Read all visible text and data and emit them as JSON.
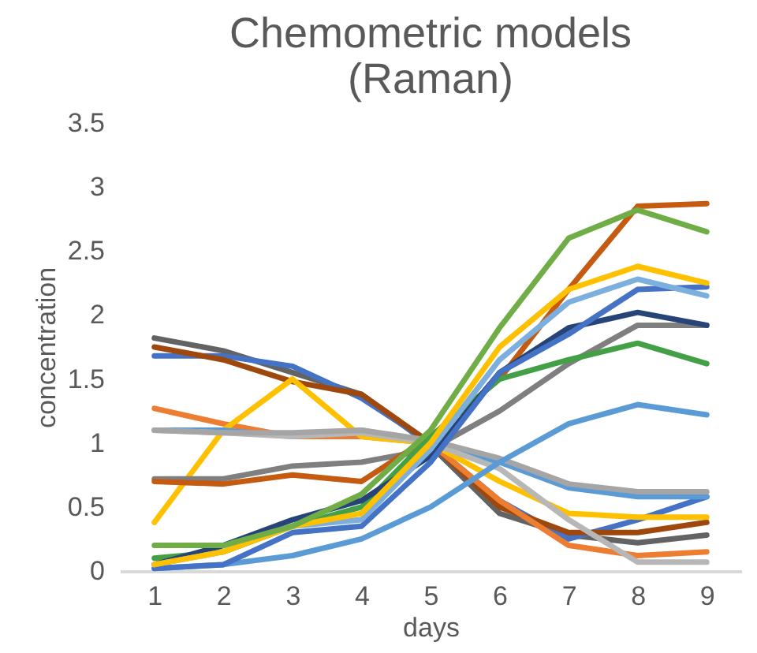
{
  "chart_data": {
    "type": "line",
    "title": "Chemometric models\n(Raman)",
    "xlabel": "days",
    "ylabel": "concentration",
    "x": [
      1,
      2,
      3,
      4,
      5,
      6,
      7,
      8,
      9
    ],
    "xlim": [
      0.5,
      9.5
    ],
    "xticks": [
      1,
      2,
      3,
      4,
      5,
      6,
      7,
      8,
      9
    ],
    "ylim": [
      0,
      3.5
    ],
    "yticks": [
      0,
      0.5,
      1,
      1.5,
      2,
      2.5,
      3,
      3.5
    ],
    "grid": false,
    "legend": false,
    "marker": "none",
    "line_style": "solid",
    "series": [
      {
        "color": "#636363",
        "values": [
          1.82,
          1.72,
          1.55,
          1.38,
          0.98,
          0.45,
          0.28,
          0.22,
          0.28
        ]
      },
      {
        "color": "#4472c4",
        "values": [
          1.68,
          1.68,
          1.6,
          1.35,
          1.0,
          0.55,
          0.25,
          0.4,
          0.58
        ]
      },
      {
        "color": "#9e480e",
        "values": [
          1.75,
          1.65,
          1.48,
          1.38,
          1.0,
          0.5,
          0.3,
          0.3,
          0.38
        ]
      },
      {
        "color": "#ed7d31",
        "values": [
          1.27,
          1.15,
          1.05,
          1.05,
          1.0,
          0.55,
          0.2,
          0.12,
          0.15
        ]
      },
      {
        "color": "#ffc000",
        "values": [
          0.38,
          1.1,
          1.5,
          1.05,
          1.0,
          0.7,
          0.45,
          0.42,
          0.42
        ]
      },
      {
        "color": "#5b9bd5",
        "values": [
          1.1,
          1.1,
          1.05,
          1.1,
          1.0,
          0.85,
          0.65,
          0.58,
          0.58
        ]
      },
      {
        "color": "#b7b7b7",
        "values": [
          1.1,
          1.08,
          1.05,
          1.08,
          1.0,
          0.8,
          0.4,
          0.07,
          0.07
        ]
      },
      {
        "color": "#a5a5a5",
        "values": [
          1.1,
          1.08,
          1.08,
          1.1,
          1.02,
          0.88,
          0.68,
          0.62,
          0.62
        ]
      },
      {
        "color": "#7f7f7f",
        "values": [
          0.72,
          0.72,
          0.82,
          0.85,
          0.95,
          1.25,
          1.62,
          1.92,
          1.92
        ]
      },
      {
        "color": "#c55a11",
        "values": [
          0.7,
          0.68,
          0.75,
          0.7,
          1.05,
          1.5,
          2.2,
          2.85,
          2.87
        ]
      },
      {
        "color": "#5b9bd5",
        "values": [
          0.02,
          0.05,
          0.12,
          0.25,
          0.5,
          0.85,
          1.15,
          1.3,
          1.22
        ]
      },
      {
        "color": "#43a047",
        "values": [
          0.1,
          0.15,
          0.35,
          0.5,
          1.05,
          1.5,
          1.65,
          1.78,
          1.62
        ]
      },
      {
        "color": "#264478",
        "values": [
          0.05,
          0.2,
          0.4,
          0.55,
          0.9,
          1.55,
          1.9,
          2.02,
          1.92
        ]
      },
      {
        "color": "#4472c4",
        "values": [
          0.02,
          0.05,
          0.3,
          0.35,
          0.85,
          1.55,
          1.85,
          2.2,
          2.22
        ]
      },
      {
        "color": "#7cafdd",
        "values": [
          0.05,
          0.15,
          0.35,
          0.4,
          0.95,
          1.65,
          2.1,
          2.28,
          2.15
        ]
      },
      {
        "color": "#ffc000",
        "values": [
          0.05,
          0.15,
          0.35,
          0.45,
          1.0,
          1.75,
          2.2,
          2.38,
          2.25
        ]
      },
      {
        "color": "#70ad47",
        "values": [
          0.2,
          0.2,
          0.35,
          0.6,
          1.1,
          1.9,
          2.6,
          2.82,
          2.65
        ]
      }
    ]
  }
}
